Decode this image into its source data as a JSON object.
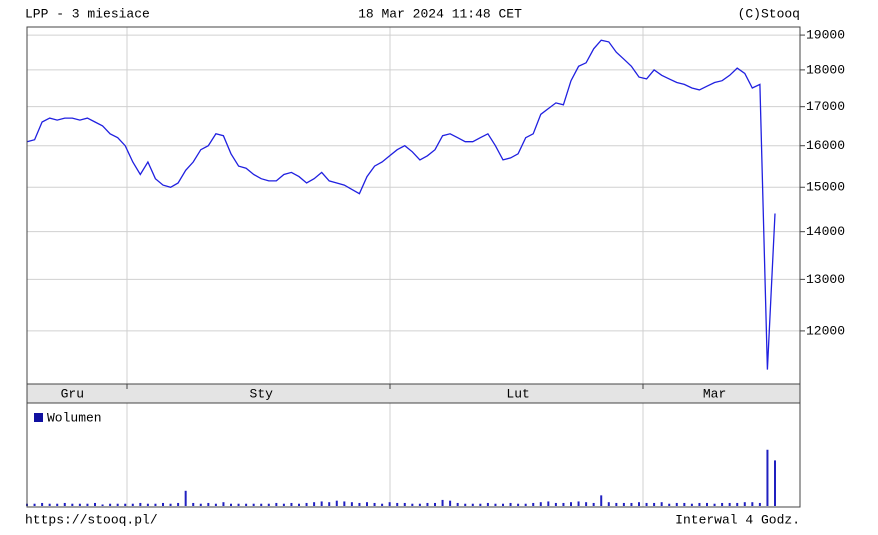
{
  "header": {
    "left": "LPP - 3 miesiace",
    "center": "18 Mar 2024 11:48 CET",
    "right": "(C)Stooq"
  },
  "footer": {
    "left": "https://stooq.pl/",
    "right": "Interwal 4 Godz."
  },
  "chart_data": {
    "type": "line",
    "categories": [
      null,
      null,
      null,
      null,
      null,
      null,
      "Gru",
      null,
      null,
      null,
      null,
      null,
      null,
      null,
      null,
      null,
      null,
      null,
      null,
      null,
      null,
      null,
      null,
      null,
      null,
      null,
      null,
      null,
      null,
      null,
      null,
      "Sty",
      null,
      null,
      null,
      null,
      null,
      null,
      null,
      null,
      null,
      null,
      null,
      null,
      null,
      null,
      null,
      null,
      null,
      null,
      null,
      null,
      null,
      null,
      null,
      null,
      null,
      null,
      null,
      null,
      null,
      null,
      null,
      null,
      null,
      "Lut",
      null,
      null,
      null,
      null,
      null,
      null,
      null,
      null,
      null,
      null,
      null,
      null,
      null,
      null,
      null,
      null,
      null,
      null,
      null,
      null,
      null,
      null,
      null,
      null,
      null,
      "Mar",
      null,
      null,
      null,
      null,
      null,
      null,
      null,
      null
    ],
    "series": [
      {
        "name": "LPP",
        "color": "#2020e0",
        "values": [
          16100,
          16150,
          16600,
          16700,
          16650,
          16700,
          16700,
          16650,
          16700,
          16600,
          16500,
          16300,
          16200,
          16000,
          15600,
          15300,
          15600,
          15200,
          15050,
          15000,
          15100,
          15400,
          15600,
          15900,
          16000,
          16300,
          16250,
          15800,
          15500,
          15450,
          15300,
          15200,
          15150,
          15150,
          15300,
          15350,
          15250,
          15100,
          15200,
          15350,
          15150,
          15100,
          15050,
          14950,
          14850,
          15250,
          15500,
          15600,
          15750,
          15900,
          16000,
          15850,
          15650,
          15750,
          15900,
          16250,
          16300,
          16200,
          16100,
          16100,
          16200,
          16300,
          16000,
          15650,
          15700,
          15800,
          16200,
          16300,
          16800,
          16950,
          17100,
          17050,
          17700,
          18100,
          18200,
          18600,
          18850,
          18800,
          18500,
          18300,
          18100,
          17800,
          17750,
          18000,
          17850,
          17750,
          17650,
          17600,
          17500,
          17450,
          17550,
          17650,
          17700,
          17850,
          18050,
          17900,
          17500,
          17600,
          11300,
          14400
        ]
      },
      {
        "name": "Wolumen",
        "color": "#2020c0",
        "values": [
          3,
          3,
          4,
          3,
          3,
          4,
          3,
          3,
          3,
          4,
          2,
          3,
          3,
          3,
          3,
          4,
          3,
          3,
          4,
          3,
          4,
          20,
          4,
          3,
          4,
          3,
          5,
          3,
          3,
          3,
          3,
          3,
          3,
          4,
          3,
          4,
          3,
          4,
          5,
          6,
          5,
          7,
          6,
          5,
          4,
          5,
          4,
          3,
          5,
          4,
          4,
          3,
          3,
          4,
          4,
          8,
          7,
          4,
          3,
          3,
          3,
          4,
          3,
          3,
          4,
          3,
          3,
          4,
          5,
          6,
          4,
          4,
          5,
          6,
          5,
          4,
          14,
          5,
          4,
          4,
          4,
          5,
          4,
          4,
          5,
          3,
          4,
          4,
          3,
          4,
          4,
          3,
          4,
          4,
          4,
          5,
          5,
          4,
          74,
          60
        ]
      }
    ],
    "legend": "Wolumen",
    "ylim": [
      11050,
      19240
    ],
    "log_scale": true,
    "grid": true,
    "yticks": [
      12000,
      13000,
      14000,
      15000,
      16000,
      17000,
      18000,
      19000
    ],
    "volume_ylim": [
      0,
      100
    ]
  }
}
